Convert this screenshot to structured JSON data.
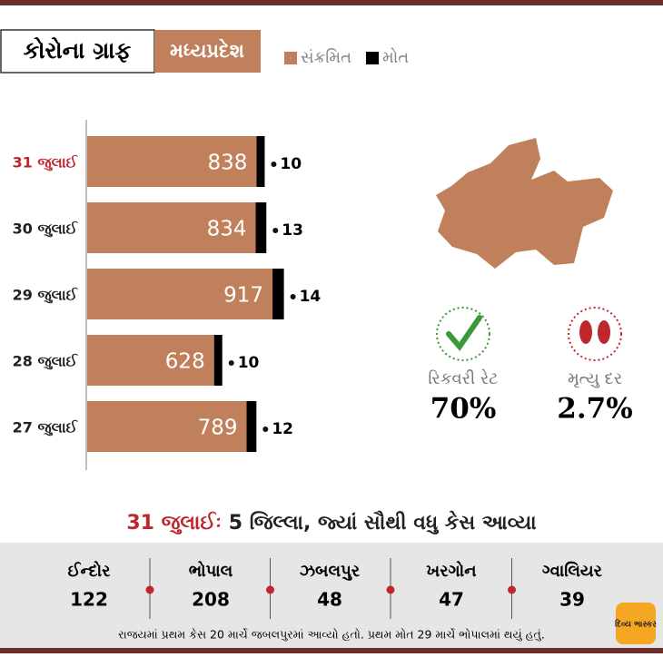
{
  "header": {
    "title": "કોરોના ગ્રાફ",
    "region": "મધ્યપ્રદેશ"
  },
  "chart_data": {
    "type": "bar",
    "orientation": "horizontal",
    "stacked": true,
    "categories": [
      "31 જુલાઈ",
      "30 જુલાઈ",
      "29 જુલાઈ",
      "28 જુલાઈ",
      "27 જુલાઈ"
    ],
    "series": [
      {
        "name": "સંક્રમિત",
        "color": "#c0805b",
        "values": [
          838,
          834,
          917,
          628,
          789
        ]
      },
      {
        "name": "મોત",
        "color": "#000000",
        "values": [
          10,
          13,
          14,
          10,
          12
        ]
      }
    ]
  },
  "stats": [
    {
      "label": "રિકવરી રેટ",
      "value": "70%"
    },
    {
      "label": "મૃત્યુ દર",
      "value": "2.7%"
    }
  ],
  "districts": {
    "date": "31 જુલાઈઃ",
    "title": "5 જિલ્લા, જ્યાં સૌથી વધુ કેસ આવ્યા",
    "items": [
      {
        "name": "ઈન્દોર",
        "cases": "122"
      },
      {
        "name": "ભોપાલ",
        "cases": "208"
      },
      {
        "name": "ઝબલપુર",
        "cases": "48"
      },
      {
        "name": "ખરગોન",
        "cases": "47"
      },
      {
        "name": "ગ્વાલિયર",
        "cases": "39"
      }
    ]
  },
  "footnote": "રાજયમાં પ્રથમ કેસ 20 માર્ચે જબલપુરમાં આવ્યો હતો. પ્રથમ મોત 29 માર્ચે ભોપાલમાં થયું હતું.",
  "logo": "દિવ્ય ભાસ્કર"
}
